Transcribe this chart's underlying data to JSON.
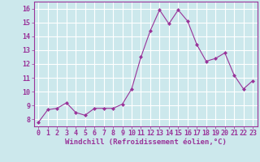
{
  "x": [
    0,
    1,
    2,
    3,
    4,
    5,
    6,
    7,
    8,
    9,
    10,
    11,
    12,
    13,
    14,
    15,
    16,
    17,
    18,
    19,
    20,
    21,
    22,
    23
  ],
  "y": [
    7.8,
    8.7,
    8.8,
    9.2,
    8.5,
    8.3,
    8.8,
    8.8,
    8.8,
    9.1,
    10.2,
    12.5,
    14.4,
    15.9,
    14.9,
    15.9,
    15.1,
    13.4,
    12.2,
    12.4,
    12.8,
    11.2,
    10.2,
    10.8
  ],
  "line_color": "#993399",
  "marker": "D",
  "marker_size": 2.0,
  "background_color": "#cce8ec",
  "grid_color": "#ffffff",
  "xlabel": "Windchill (Refroidissement éolien,°C)",
  "xlabel_fontsize": 6.5,
  "tick_fontsize": 6.0,
  "ylim": [
    7.5,
    16.5
  ],
  "xlim": [
    -0.5,
    23.5
  ],
  "yticks": [
    8,
    9,
    10,
    11,
    12,
    13,
    14,
    15,
    16
  ],
  "xticks": [
    0,
    1,
    2,
    3,
    4,
    5,
    6,
    7,
    8,
    9,
    10,
    11,
    12,
    13,
    14,
    15,
    16,
    17,
    18,
    19,
    20,
    21,
    22,
    23
  ],
  "line_width": 0.8
}
